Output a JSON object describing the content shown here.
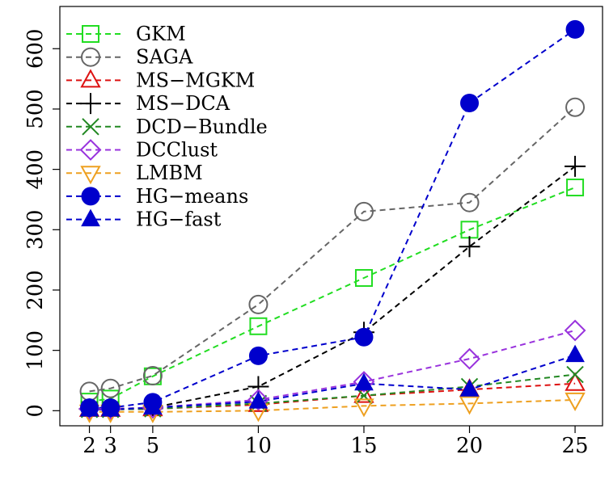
{
  "chart_data": {
    "type": "line",
    "title": "",
    "xlabel": "",
    "ylabel": "",
    "x": [
      2,
      3,
      5,
      10,
      15,
      20,
      25
    ],
    "xticks": [
      2,
      3,
      5,
      10,
      15,
      20,
      25
    ],
    "yticks": [
      0,
      100,
      200,
      300,
      400,
      500,
      600
    ],
    "xlim": [
      0.6,
      26.3
    ],
    "ylim": [
      -25,
      670
    ],
    "grid": false,
    "legend_position": "top-left",
    "series": [
      {
        "name": "GKM",
        "color": "#22dd22",
        "marker": "square-open",
        "values": [
          15,
          20,
          57,
          140,
          220,
          300,
          370
        ]
      },
      {
        "name": "SAGA",
        "color": "#666666",
        "marker": "circle-open",
        "values": [
          32,
          37,
          58,
          176,
          330,
          345,
          503
        ]
      },
      {
        "name": "MS−MGKM",
        "color": "#dd1111",
        "marker": "triangle-up-open",
        "values": [
          2,
          2,
          3,
          10,
          25,
          35,
          45
        ]
      },
      {
        "name": "MS−DCA",
        "color": "#000000",
        "marker": "plus",
        "values": [
          3,
          3,
          5,
          40,
          130,
          272,
          405
        ]
      },
      {
        "name": "DCD−Bundle",
        "color": "#228822",
        "marker": "x",
        "values": [
          2,
          2,
          3,
          12,
          25,
          40,
          60
        ]
      },
      {
        "name": "DCClust",
        "color": "#9933dd",
        "marker": "diamond-open",
        "values": [
          3,
          3,
          5,
          18,
          48,
          86,
          133
        ]
      },
      {
        "name": "LMBM",
        "color": "#eea020",
        "marker": "triangle-down-open",
        "values": [
          -2,
          -2,
          -2,
          0,
          8,
          12,
          18
        ]
      },
      {
        "name": "HG−means",
        "color": "#0000cc",
        "marker": "circle-filled",
        "values": [
          5,
          5,
          14,
          91,
          122,
          510,
          632
        ]
      },
      {
        "name": "HG−fast",
        "color": "#0000cc",
        "marker": "triangle-up-filled",
        "values": [
          2,
          2,
          5,
          15,
          45,
          35,
          92
        ]
      }
    ]
  }
}
